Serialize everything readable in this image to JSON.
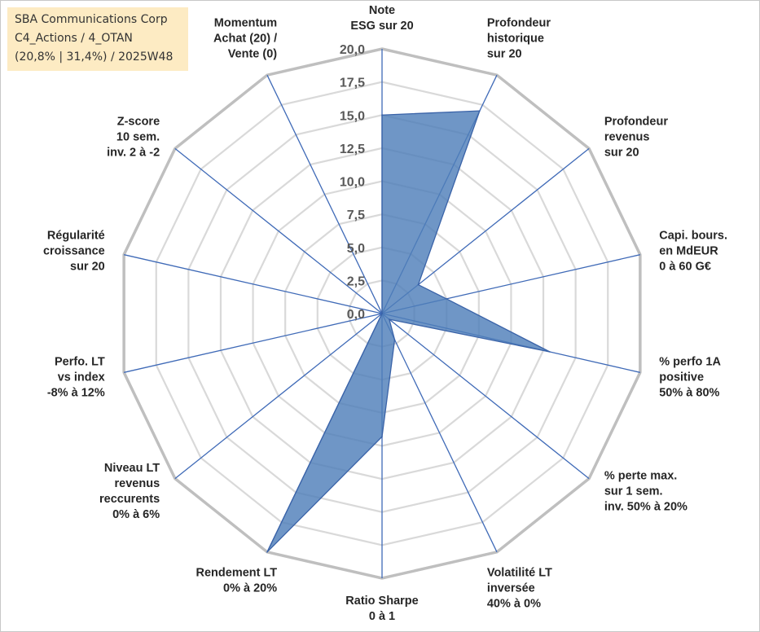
{
  "info_box": {
    "line1": "SBA Communications Corp",
    "line2": "C4_Actions / 4_OTAN",
    "line3": "(20,8% | 31,4%) / 2025W48"
  },
  "colors": {
    "fill": "#4f7fb9",
    "stroke": "#3a63a8",
    "spokes": "#3f6ab7",
    "outer_grid": "#bfbfbf",
    "inner_grid": "#d9d9d9"
  },
  "chart_data": {
    "type": "radar",
    "title": "",
    "rmax": 20,
    "ticks": [
      "0,0",
      "2,5",
      "5,0",
      "7,5",
      "10,0",
      "12,5",
      "15,0",
      "17,5",
      "20,0"
    ],
    "categories": [
      [
        "Note",
        "ESG sur 20"
      ],
      [
        "Profondeur",
        "historique",
        "sur 20"
      ],
      [
        "Profondeur",
        "revenus",
        "sur 20"
      ],
      [
        "Capi. bours.",
        "en MdEUR",
        "0 à 60 G€"
      ],
      [
        "% perfo 1A",
        "positive",
        "50% à 80%"
      ],
      [
        "% perte max.",
        "sur 1 sem.",
        "inv. 50% à 20%"
      ],
      [
        "Volatilité LT",
        "inversée",
        "40% à 0%"
      ],
      [
        "Ratio Sharpe",
        "0 à 1"
      ],
      [
        "Rendement LT",
        "0% à 20%"
      ],
      [
        "Niveau LT",
        "revenus",
        "reccurents",
        "0% à 6%"
      ],
      [
        "Perfo. LT",
        "vs index",
        "-8% à 12%"
      ],
      [
        "Régularité",
        "croissance",
        "sur 20"
      ],
      [
        "Z-score",
        "10 sem.",
        "inv. 2 à -2"
      ],
      [
        "Momentum",
        "Achat (20) /",
        "Vente (0)"
      ]
    ],
    "series": [
      {
        "name": "SBA Communications Corp",
        "values": [
          15.0,
          17.0,
          3.5,
          5.0,
          13.0,
          0.7,
          2.2,
          9.3,
          20.0,
          0.0,
          0.0,
          0.0,
          0.0,
          0.0
        ]
      }
    ]
  }
}
